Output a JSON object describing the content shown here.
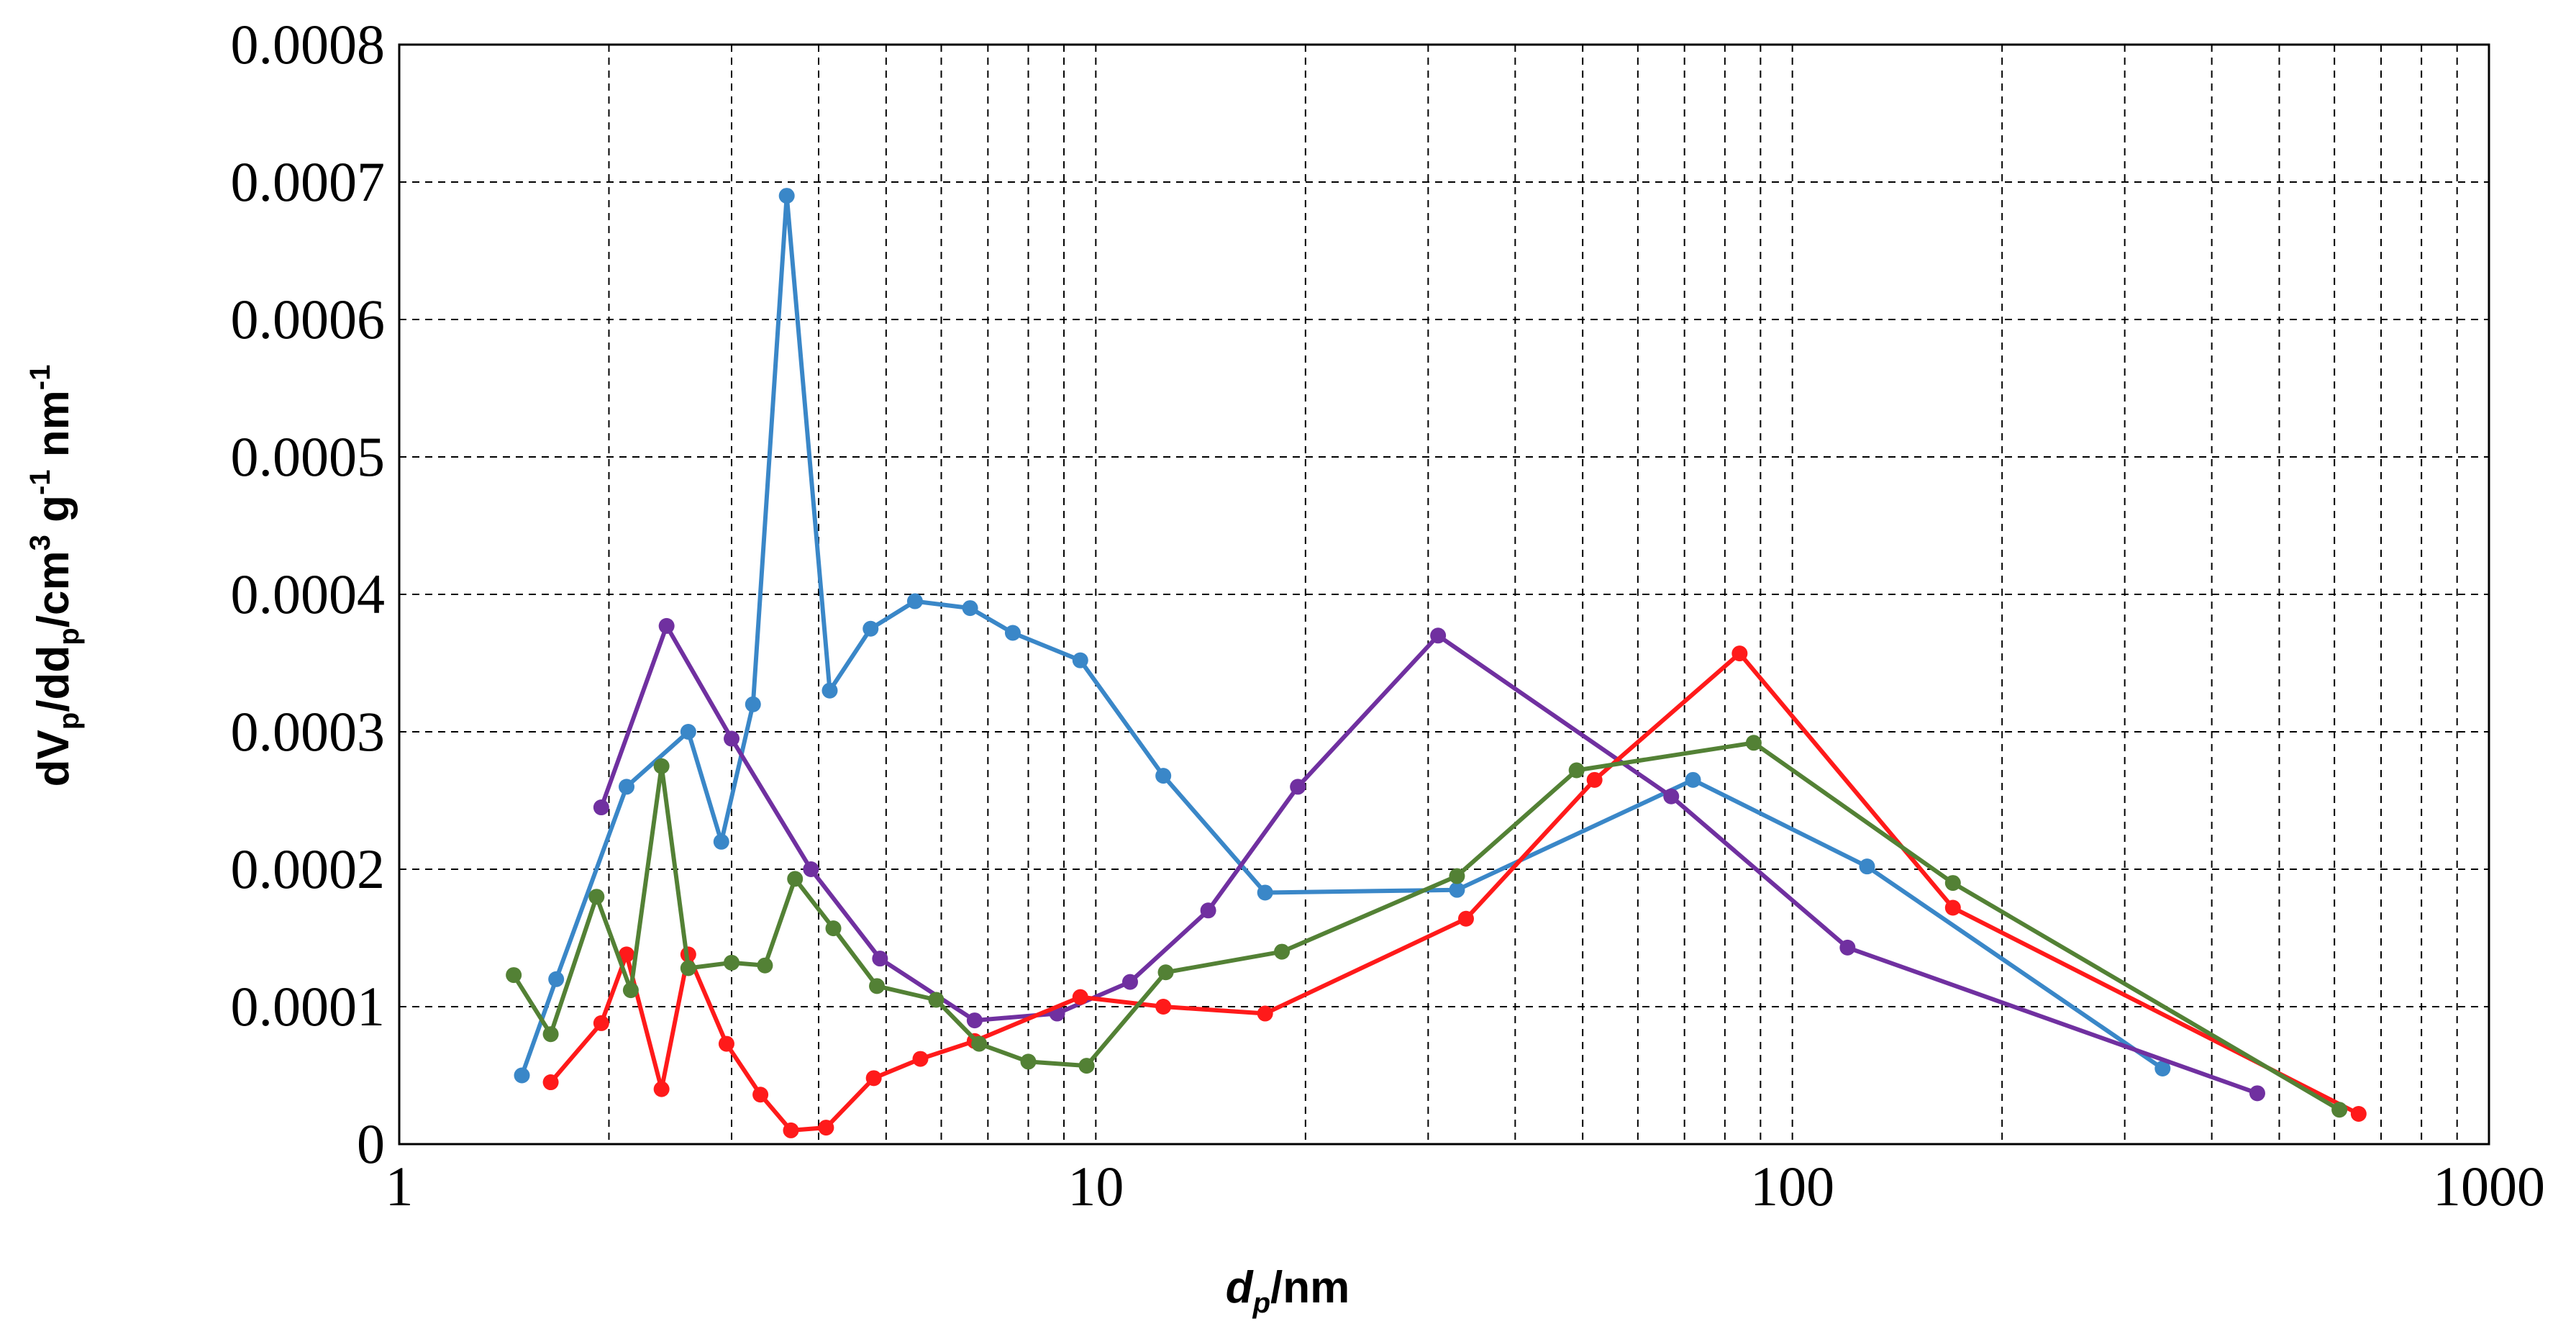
{
  "chart_data": {
    "type": "line",
    "title": "",
    "xscale": "log",
    "xlim": [
      1,
      1000
    ],
    "ylim": [
      0,
      0.0008
    ],
    "grid": true,
    "xlabel": {
      "main": "d",
      "sub": "p",
      "tail": "/nm"
    },
    "ylabel": {
      "p1": "dV",
      "s1": "p",
      "p2": "/dd",
      "s2": "p",
      "p3": "/cm",
      "sup1": "3",
      "p4": " g",
      "sup2": "-1",
      "p5": " nm",
      "sup3": "-1"
    },
    "yticks": [
      "0",
      "0.0001",
      "0.0002",
      "0.0003",
      "0.0004",
      "0.0005",
      "0.0006",
      "0.0007",
      "0.0008"
    ],
    "xticks": [
      "1",
      "10",
      "100",
      "1000"
    ],
    "series": [
      {
        "color": "#3a87c8",
        "points": [
          [
            1.5,
            5e-05
          ],
          [
            1.68,
            0.00012
          ],
          [
            2.12,
            0.00026
          ],
          [
            2.6,
            0.0003
          ],
          [
            2.9,
            0.00022
          ],
          [
            3.22,
            0.00032
          ],
          [
            3.6,
            0.00069
          ],
          [
            4.15,
            0.00033
          ],
          [
            4.75,
            0.000375
          ],
          [
            5.5,
            0.000395
          ],
          [
            6.6,
            0.00039
          ],
          [
            7.6,
            0.000372
          ],
          [
            9.5,
            0.000352
          ],
          [
            12.5,
            0.000268
          ],
          [
            17.5,
            0.000183
          ],
          [
            33,
            0.000185
          ],
          [
            72,
            0.000265
          ],
          [
            128,
            0.000202
          ],
          [
            340,
            5.5e-05
          ]
        ]
      },
      {
        "color": "#7030a0",
        "points": [
          [
            1.95,
            0.000245
          ],
          [
            2.42,
            0.000377
          ],
          [
            3.0,
            0.000295
          ],
          [
            3.9,
            0.0002
          ],
          [
            4.9,
            0.000135
          ],
          [
            6.7,
            9e-05
          ],
          [
            8.8,
            9.5e-05
          ],
          [
            11.2,
            0.000118
          ],
          [
            14.5,
            0.00017
          ],
          [
            19.5,
            0.00026
          ],
          [
            31,
            0.00037
          ],
          [
            67,
            0.000253
          ],
          [
            120,
            0.000143
          ],
          [
            465,
            3.7e-05
          ]
        ]
      },
      {
        "color": "#ff1a1a",
        "points": [
          [
            1.65,
            4.5e-05
          ],
          [
            1.95,
            8.8e-05
          ],
          [
            2.12,
            0.000138
          ],
          [
            2.38,
            4e-05
          ],
          [
            2.6,
            0.000138
          ],
          [
            2.95,
            7.3e-05
          ],
          [
            3.3,
            3.6e-05
          ],
          [
            3.65,
            1e-05
          ],
          [
            4.1,
            1.2e-05
          ],
          [
            4.8,
            4.8e-05
          ],
          [
            5.6,
            6.2e-05
          ],
          [
            6.7,
            7.5e-05
          ],
          [
            9.5,
            0.000107
          ],
          [
            12.5,
            0.0001
          ],
          [
            17.5,
            9.5e-05
          ],
          [
            34,
            0.000164
          ],
          [
            52,
            0.000265
          ],
          [
            84,
            0.000357
          ],
          [
            170,
            0.000172
          ],
          [
            650,
            2.2e-05
          ]
        ]
      },
      {
        "color": "#538135",
        "points": [
          [
            1.46,
            0.000123
          ],
          [
            1.65,
            8e-05
          ],
          [
            1.92,
            0.00018
          ],
          [
            2.15,
            0.000112
          ],
          [
            2.38,
            0.000275
          ],
          [
            2.6,
            0.000128
          ],
          [
            3.0,
            0.000132
          ],
          [
            3.35,
            0.00013
          ],
          [
            3.7,
            0.000193
          ],
          [
            4.2,
            0.000157
          ],
          [
            4.85,
            0.000115
          ],
          [
            5.9,
            0.000105
          ],
          [
            6.8,
            7.3e-05
          ],
          [
            8.0,
            6e-05
          ],
          [
            9.7,
            5.7e-05
          ],
          [
            12.6,
            0.000125
          ],
          [
            18.5,
            0.00014
          ],
          [
            33,
            0.000195
          ],
          [
            49,
            0.000272
          ],
          [
            88,
            0.000292
          ],
          [
            170,
            0.00019
          ],
          [
            610,
            2.5e-05
          ]
        ]
      }
    ]
  }
}
